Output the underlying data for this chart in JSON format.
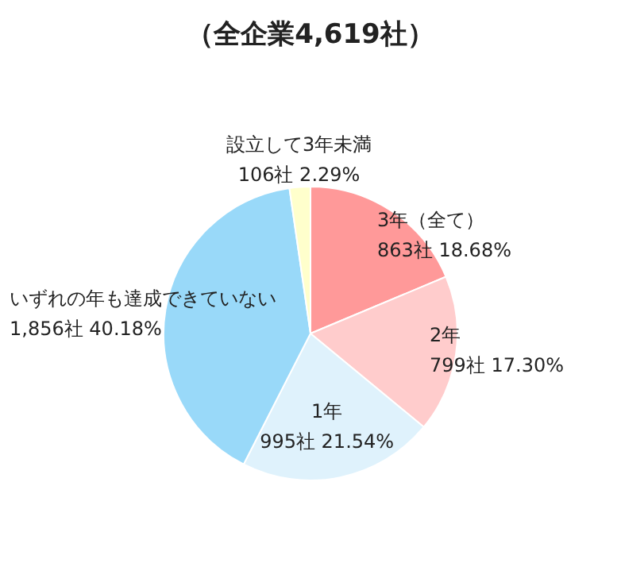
{
  "chart_data": {
    "type": "pie",
    "title": "（全企業4,619社）",
    "categories": [
      "3年（全て）",
      "2年",
      "1年",
      "いずれの年も達成できていない",
      "設立して3年未満"
    ],
    "values": [
      863,
      799,
      995,
      1856,
      106
    ],
    "value_labels": [
      "863社 18.68%",
      "799社 17.30%",
      "995社 21.54%",
      "1,856社 40.18%",
      "106社 2.29%"
    ],
    "colors": [
      "#ff9999",
      "#ffcccc",
      "#dff2fc",
      "#99d9f9",
      "#ffffcc"
    ],
    "legend": false
  }
}
